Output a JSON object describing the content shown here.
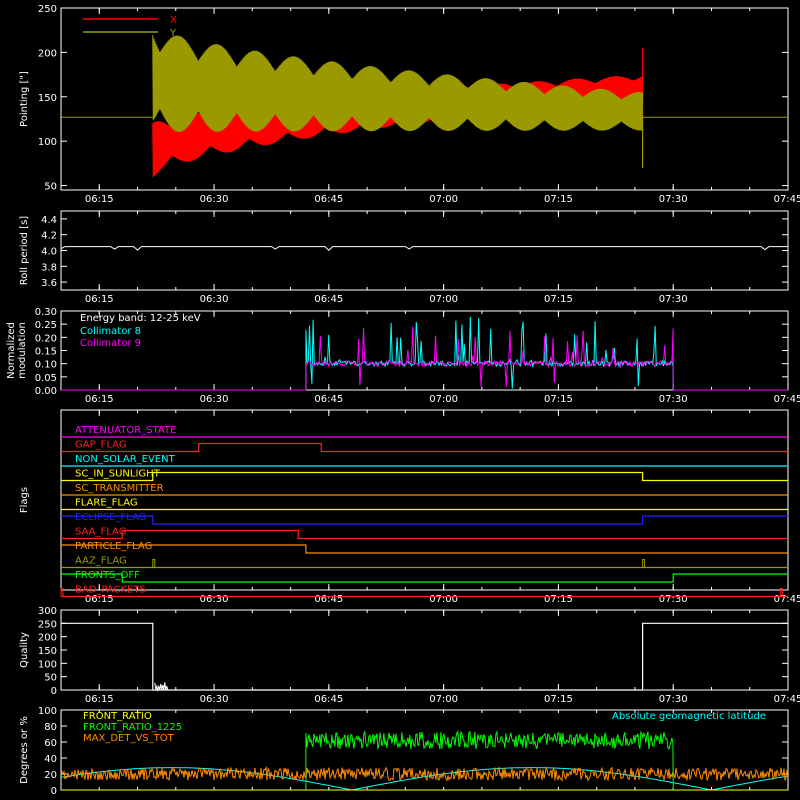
{
  "chart_data": [
    {
      "id": "pointing",
      "type": "line",
      "ylabel": "Pointing [\"]",
      "ylim": [
        45,
        250
      ],
      "yticks": [
        50,
        100,
        150,
        200,
        250
      ],
      "xticks": [
        "06:15",
        "06:30",
        "06:45",
        "07:00",
        "07:15",
        "07:30",
        "07:45"
      ],
      "legend_position": "top-left",
      "baseline": 127,
      "active_window": [
        "06:22",
        "07:26"
      ],
      "series": [
        {
          "name": "X",
          "color": "#ff0000",
          "upper_start": 120,
          "upper_end": 175,
          "lower_start": 58,
          "lower_end": 148,
          "spike": 205
        },
        {
          "name": "Y",
          "color": "#9a9a00",
          "upper_start": 232,
          "upper_end": 155,
          "lower_start": 110,
          "lower_end": 112,
          "spike": 70
        }
      ]
    },
    {
      "id": "roll",
      "type": "line",
      "ylabel": "Roll period [s]",
      "ylim": [
        3.5,
        4.5
      ],
      "yticks": [
        "3.6",
        "3.8",
        "4.0",
        "4.2",
        "4.4"
      ],
      "xticks": [
        "06:15",
        "06:30",
        "06:45",
        "07:00",
        "07:15",
        "07:30"
      ],
      "value": 4.05,
      "color": "#ffffff"
    },
    {
      "id": "modulation",
      "type": "line",
      "ylabel": "Normalized modulation",
      "ylim": [
        0,
        0.3
      ],
      "yticks": [
        "0.00",
        "0.05",
        "0.10",
        "0.15",
        "0.20",
        "0.25",
        "0.30"
      ],
      "xticks": [
        "06:15",
        "06:30",
        "06:45",
        "07:00",
        "07:15",
        "07:30",
        "07:45"
      ],
      "legend_text": "Energy band: 12-25 keV",
      "active_window": [
        "06:42",
        "07:30"
      ],
      "series": [
        {
          "name": "Collimator 8",
          "color": "#00ffff",
          "base": 0.1,
          "max": 0.28
        },
        {
          "name": "Collimator 9",
          "color": "#ff00ff",
          "base": 0.1,
          "max": 0.24
        }
      ]
    },
    {
      "id": "flags",
      "type": "line",
      "ylabel": "Flags",
      "xticks": [
        "06:15",
        "06:30",
        "06:45",
        "07:00",
        "07:15",
        "07:30",
        "07:45"
      ],
      "flags": [
        {
          "name": "ATTENUATOR_STATE",
          "color": "#ff00ff",
          "segments": []
        },
        {
          "name": "GAP_FLAG",
          "color": "#ff2020",
          "segments": [
            [
              "06:10",
              "06:28",
              0
            ],
            [
              "06:28",
              "06:44",
              1
            ],
            [
              "06:44",
              "07:45",
              0
            ]
          ]
        },
        {
          "name": "NON_SOLAR_EVENT",
          "color": "#00ffff",
          "segments": []
        },
        {
          "name": "SC_IN_SUNLIGHT",
          "color": "#ffff00",
          "segments": [
            [
              "06:10",
              "06:22",
              0
            ],
            [
              "06:22",
              "07:26",
              1
            ],
            [
              "07:26",
              "07:45",
              0
            ]
          ]
        },
        {
          "name": "SC_TRANSMITTER",
          "color": "#ff8c00",
          "segments": []
        },
        {
          "name": "FLARE_FLAG",
          "color": "#ffff00",
          "segments": []
        },
        {
          "name": "ECLIPSE_FLAG",
          "color": "#2020ff",
          "segments": [
            [
              "06:10",
              "06:22",
              1
            ],
            [
              "06:22",
              "07:26",
              0
            ],
            [
              "07:26",
              "07:45",
              1
            ]
          ]
        },
        {
          "name": "SAA_FLAG",
          "color": "#ff2020",
          "segments": [
            [
              "06:10",
              "06:18",
              0
            ],
            [
              "06:18",
              "06:41",
              1
            ],
            [
              "06:41",
              "07:45",
              0
            ]
          ]
        },
        {
          "name": "PARTICLE_FLAG",
          "color": "#ff8c00",
          "segments": [
            [
              "06:10",
              "06:42",
              1
            ],
            [
              "06:42",
              "07:45",
              0
            ]
          ]
        },
        {
          "name": "AAZ_FLAG",
          "color": "#9a9a00",
          "segments": [
            [
              "06:10",
              "07:45",
              0
            ]
          ],
          "blips": [
            "06:22",
            "07:26"
          ]
        },
        {
          "name": "FRONTS_OFF",
          "color": "#00ff00",
          "segments": [
            [
              "06:10",
              "06:18",
              1
            ],
            [
              "06:18",
              "07:30",
              0
            ],
            [
              "07:30",
              "07:45",
              1
            ]
          ]
        },
        {
          "name": "BAD_PACKETS",
          "color": "#ff2020",
          "segments": [
            [
              "06:10",
              "07:45",
              0
            ]
          ],
          "blips": [
            "06:10",
            "07:44"
          ]
        }
      ]
    },
    {
      "id": "quality",
      "type": "line",
      "ylabel": "Quality",
      "ylim": [
        0,
        300
      ],
      "yticks": [
        0,
        50,
        100,
        150,
        200,
        250,
        300
      ],
      "xticks": [
        "06:15",
        "06:30",
        "06:45",
        "07:00",
        "07:15",
        "07:30",
        "07:45"
      ],
      "segments": [
        [
          "06:10",
          "06:22",
          250
        ],
        [
          "06:22",
          "07:26",
          0
        ],
        [
          "07:26",
          "07:45",
          250
        ]
      ],
      "color": "#ffffff"
    },
    {
      "id": "ratios",
      "type": "line",
      "ylabel": "Degrees or %",
      "ylim": [
        0,
        100
      ],
      "yticks": [
        0,
        20,
        40,
        60,
        80,
        100
      ],
      "annotation": "Absolute geomagnetic latitude",
      "annotation_color": "#00ffff",
      "series": [
        {
          "name": "FRONT_RATIO",
          "color": "#ffff00"
        },
        {
          "name": "FRONT_RATIO_1225",
          "color": "#00ff00",
          "window": [
            "06:42",
            "07:30"
          ],
          "level": 62
        },
        {
          "name": "MAX_DET_VS_TOT",
          "color": "#ff8c00",
          "level": 20
        },
        {
          "name": "Absolute geomagnetic latitude",
          "color": "#00ffff",
          "peaks": [
            [
              "06:25",
              28
            ],
            [
              "07:12",
              27
            ]
          ]
        }
      ]
    }
  ]
}
